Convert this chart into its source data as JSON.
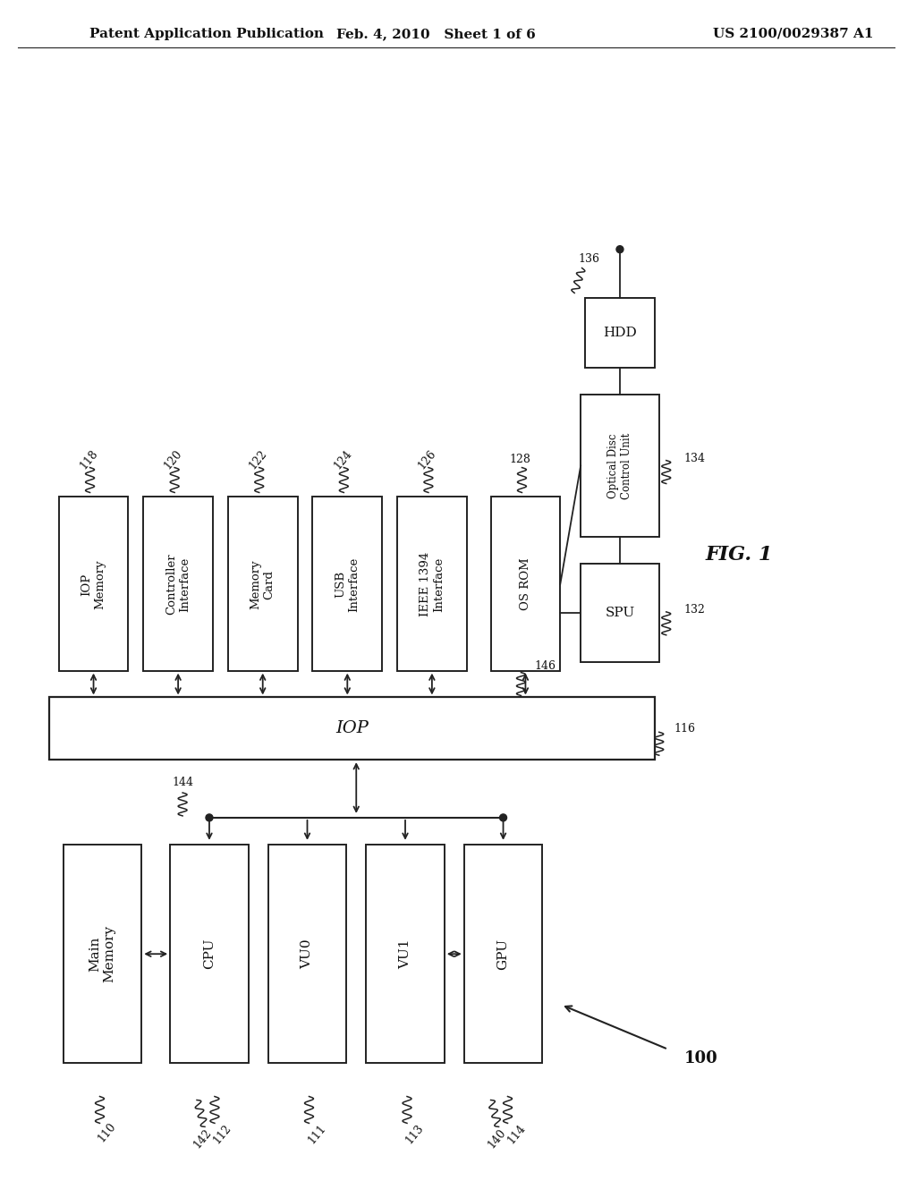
{
  "background_color": "#ffffff",
  "header_left": "Patent Application Publication",
  "header_center": "Feb. 4, 2010   Sheet 1 of 6",
  "header_right": "US 2100/0029387 A1",
  "fig_label": "FIG. 1"
}
